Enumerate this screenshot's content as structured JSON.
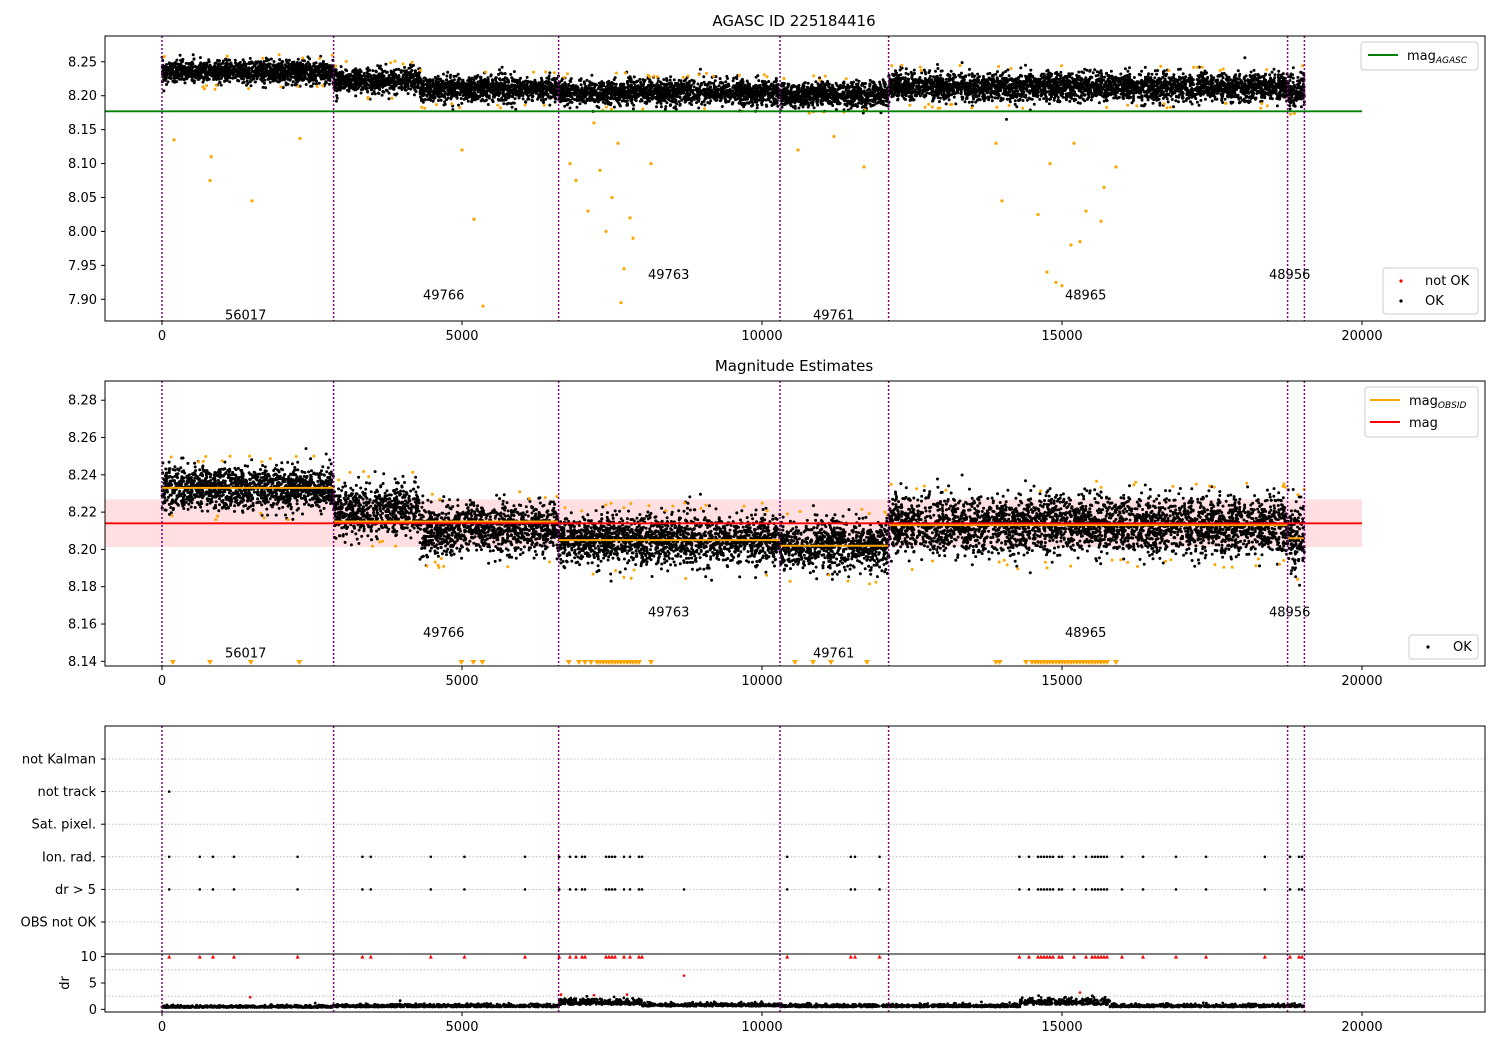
{
  "colors": {
    "points_ok": "#000000",
    "points_flagged": "#ffa500",
    "not_ok": "#ff0000",
    "obs_line": "#800080",
    "mag_agasc_line": "#008000",
    "mag_obsid_line": "#ffa500",
    "mag_line": "#ff0000",
    "mag_band": "#ffd7da",
    "grid": "#b0b0b0"
  },
  "chart_data": [
    {
      "type": "scatter",
      "title": "AGASC ID 225184416",
      "xlabel": "",
      "ylabel": "",
      "xlim": [
        -950,
        22050
      ],
      "ylim": [
        7.868,
        8.288
      ],
      "xticks": [
        0,
        5000,
        10000,
        15000,
        20000
      ],
      "yticks": [
        7.9,
        7.95,
        8.0,
        8.05,
        8.1,
        8.15,
        8.2,
        8.25
      ],
      "ytick_labels": [
        "7.90",
        "7.95",
        "8.00",
        "8.05",
        "8.10",
        "8.15",
        "8.20",
        "8.25"
      ],
      "legend": {
        "placement": "top-right",
        "entries": [
          {
            "label": "mag",
            "sub": "AGASC",
            "color": "#008000"
          }
        ]
      },
      "legend2": {
        "placement": "bottom-right",
        "entries": [
          {
            "label": "not OK",
            "color": "#ff0000"
          },
          {
            "label": "OK",
            "color": "#000000"
          }
        ]
      },
      "hlines": [
        {
          "y": 8.177,
          "x0": -950,
          "x1": 20000,
          "color": "#008000"
        }
      ],
      "obs_boundaries": [
        0,
        2860,
        6610,
        10300,
        12110,
        18760,
        19040
      ],
      "segments": [
        {
          "x0": 0,
          "x1": 2860,
          "mean": 8.235,
          "spread": 0.008
        },
        {
          "x0": 2860,
          "x1": 4300,
          "mean": 8.222,
          "spread": 0.009
        },
        {
          "x0": 4300,
          "x1": 6610,
          "mean": 8.21,
          "spread": 0.009
        },
        {
          "x0": 6610,
          "x1": 10300,
          "mean": 8.205,
          "spread": 0.009
        },
        {
          "x0": 10300,
          "x1": 12110,
          "mean": 8.201,
          "spread": 0.009
        },
        {
          "x0": 12110,
          "x1": 18760,
          "mean": 8.213,
          "spread": 0.01
        },
        {
          "x0": 18760,
          "x1": 19040,
          "mean": 8.207,
          "spread": 0.012
        }
      ],
      "outliers": [
        {
          "x": 200,
          "y": 8.135
        },
        {
          "x": 820,
          "y": 8.11
        },
        {
          "x": 800,
          "y": 8.075
        },
        {
          "x": 1500,
          "y": 8.045
        },
        {
          "x": 2300,
          "y": 8.137
        },
        {
          "x": 5000,
          "y": 8.12
        },
        {
          "x": 5200,
          "y": 8.018
        },
        {
          "x": 5350,
          "y": 7.89
        },
        {
          "x": 6900,
          "y": 8.075
        },
        {
          "x": 7100,
          "y": 8.03
        },
        {
          "x": 7300,
          "y": 8.09
        },
        {
          "x": 7400,
          "y": 8.0
        },
        {
          "x": 7500,
          "y": 8.05
        },
        {
          "x": 7600,
          "y": 8.13
        },
        {
          "x": 7650,
          "y": 7.895
        },
        {
          "x": 7700,
          "y": 7.945
        },
        {
          "x": 7800,
          "y": 8.02
        },
        {
          "x": 7850,
          "y": 7.99
        },
        {
          "x": 7200,
          "y": 8.16
        },
        {
          "x": 6800,
          "y": 8.1
        },
        {
          "x": 8150,
          "y": 8.1
        },
        {
          "x": 10600,
          "y": 8.12
        },
        {
          "x": 11200,
          "y": 8.14
        },
        {
          "x": 11700,
          "y": 8.095
        },
        {
          "x": 13900,
          "y": 8.13
        },
        {
          "x": 14000,
          "y": 8.045
        },
        {
          "x": 14600,
          "y": 8.025
        },
        {
          "x": 14750,
          "y": 7.94
        },
        {
          "x": 14900,
          "y": 7.925
        },
        {
          "x": 15000,
          "y": 7.92
        },
        {
          "x": 15150,
          "y": 7.98
        },
        {
          "x": 15300,
          "y": 7.985
        },
        {
          "x": 15400,
          "y": 8.03
        },
        {
          "x": 15650,
          "y": 8.015
        },
        {
          "x": 15700,
          "y": 8.065
        },
        {
          "x": 15900,
          "y": 8.095
        },
        {
          "x": 14800,
          "y": 8.1
        },
        {
          "x": 15200,
          "y": 8.13
        }
      ],
      "annotations": [
        {
          "text": "56017",
          "x": 1050,
          "y": 7.87
        },
        {
          "text": "49766",
          "x": 4350,
          "y": 7.9
        },
        {
          "text": "49763",
          "x": 8100,
          "y": 7.93
        },
        {
          "text": "49761",
          "x": 10850,
          "y": 7.87
        },
        {
          "text": "48965",
          "x": 15050,
          "y": 7.9
        },
        {
          "text": "48956",
          "x": 18450,
          "y": 7.93
        }
      ]
    },
    {
      "type": "scatter",
      "title": "Magnitude Estimates",
      "xlabel": "",
      "ylabel": "",
      "xlim": [
        -950,
        22050
      ],
      "ylim": [
        8.1375,
        8.2903
      ],
      "xticks": [
        0,
        5000,
        10000,
        15000,
        20000
      ],
      "yticks": [
        8.14,
        8.16,
        8.18,
        8.2,
        8.22,
        8.24,
        8.26,
        8.28
      ],
      "ytick_labels": [
        "8.14",
        "8.16",
        "8.18",
        "8.20",
        "8.22",
        "8.24",
        "8.26",
        "8.28"
      ],
      "legend": {
        "placement": "top-right",
        "entries": [
          {
            "label": "mag",
            "sub": "OBSID",
            "color": "#ffa500"
          },
          {
            "label": "mag",
            "sub": "",
            "color": "#ff0000"
          }
        ]
      },
      "legend2": {
        "placement": "bottom-right",
        "entries": [
          {
            "label": "OK",
            "color": "#000000"
          }
        ]
      },
      "mag": 8.214,
      "mag_band": [
        8.2013,
        8.2268
      ],
      "mag_obsid": [
        {
          "x0": 0,
          "x1": 2860,
          "y": 8.233
        },
        {
          "x0": 2860,
          "x1": 6610,
          "y": 8.215
        },
        {
          "x0": 6610,
          "x1": 10300,
          "y": 8.205
        },
        {
          "x0": 10300,
          "x1": 12110,
          "y": 8.202
        },
        {
          "x0": 12110,
          "x1": 18760,
          "y": 8.213
        },
        {
          "x0": 18760,
          "x1": 19040,
          "y": 8.206
        }
      ],
      "obs_boundaries": [
        0,
        2860,
        6610,
        10300,
        12110,
        18760,
        19040
      ],
      "segments": [
        {
          "x0": 0,
          "x1": 2860,
          "mean": 8.233,
          "spread": 0.0055
        },
        {
          "x0": 2860,
          "x1": 4300,
          "mean": 8.221,
          "spread": 0.0065
        },
        {
          "x0": 4300,
          "x1": 6610,
          "mean": 8.211,
          "spread": 0.0065
        },
        {
          "x0": 6610,
          "x1": 10300,
          "mean": 8.205,
          "spread": 0.0065
        },
        {
          "x0": 10300,
          "x1": 12110,
          "mean": 8.202,
          "spread": 0.0065
        },
        {
          "x0": 12110,
          "x1": 18760,
          "mean": 8.213,
          "spread": 0.0075
        },
        {
          "x0": 18760,
          "x1": 19040,
          "mean": 8.207,
          "spread": 0.009
        }
      ],
      "lower_limit_markers": [
        180,
        800,
        1480,
        2290,
        4990,
        5190,
        5340,
        6780,
        6950,
        7050,
        7150,
        7250,
        7300,
        7350,
        7400,
        7450,
        7500,
        7550,
        7600,
        7650,
        7700,
        7750,
        7800,
        7850,
        7900,
        7950,
        8150,
        10550,
        10850,
        11150,
        11750,
        13900,
        13960,
        14400,
        14500,
        14550,
        14600,
        14650,
        14700,
        14750,
        14800,
        14850,
        14900,
        14950,
        15000,
        15050,
        15100,
        15150,
        15200,
        15250,
        15300,
        15350,
        15400,
        15450,
        15500,
        15550,
        15600,
        15650,
        15700,
        15750,
        15900
      ],
      "annotations": [
        {
          "text": "56017",
          "x": 1050,
          "y": 8.142
        },
        {
          "text": "49766",
          "x": 4350,
          "y": 8.153
        },
        {
          "text": "49763",
          "x": 8100,
          "y": 8.164
        },
        {
          "text": "49761",
          "x": 10850,
          "y": 8.142
        },
        {
          "text": "48965",
          "x": 15050,
          "y": 8.153
        },
        {
          "text": "48956",
          "x": 18450,
          "y": 8.164
        }
      ]
    },
    {
      "type": "scatter",
      "title": "",
      "xlabel": "",
      "ylabel": "",
      "xlim": [
        -950,
        22050
      ],
      "flag_rows": [
        "not Kalman",
        "not track",
        "Sat. pixel.",
        "Ion. rad.",
        "dr > 5",
        "OBS not OK"
      ],
      "obs_boundaries": [
        0,
        2860,
        6610,
        10300,
        12110,
        18760,
        19040
      ],
      "flags": {
        "not track": [
          120
        ],
        "Ion. rad.": [
          120,
          630,
          850,
          1200,
          2260,
          3340,
          3480,
          4480,
          5040,
          6050,
          6620,
          6800,
          6900,
          7000,
          7050,
          7400,
          7450,
          7500,
          7550,
          7700,
          7800,
          7950,
          8000,
          10420,
          11480,
          11550,
          11960,
          14290,
          14450,
          14600,
          14650,
          14700,
          14750,
          14800,
          14850,
          14950,
          15000,
          15200,
          15400,
          15500,
          15550,
          15600,
          15650,
          15700,
          15750,
          16000,
          16350,
          16900,
          17400,
          18380,
          18800,
          18950,
          19000
        ],
        "dr > 5": [
          120,
          630,
          850,
          1200,
          2260,
          3340,
          3480,
          4480,
          5040,
          6050,
          6620,
          6800,
          6900,
          7000,
          7050,
          7400,
          7450,
          7500,
          7550,
          7700,
          7800,
          7950,
          8000,
          8700,
          10420,
          11480,
          11550,
          11960,
          14290,
          14450,
          14600,
          14650,
          14700,
          14750,
          14800,
          14850,
          14950,
          15000,
          15200,
          15400,
          15500,
          15550,
          15600,
          15650,
          15700,
          15750,
          16000,
          16350,
          16900,
          17400,
          18380,
          18800,
          18950,
          19000
        ]
      }
    },
    {
      "type": "scatter",
      "title": "",
      "xlabel": "",
      "ylabel": "dr",
      "xlim": [
        -950,
        22050
      ],
      "ylim": [
        -0.5,
        10.5
      ],
      "xticks": [
        0,
        5000,
        10000,
        15000,
        20000
      ],
      "yticks": [
        0,
        5,
        10
      ],
      "ytick_labels": [
        "0",
        "5",
        "10"
      ],
      "obs_boundaries": [
        0,
        2860,
        6610,
        10300,
        12110,
        18760,
        19040
      ],
      "clipped_x": [
        120,
        630,
        850,
        1200,
        2260,
        3340,
        3480,
        4480,
        5040,
        6050,
        6620,
        6800,
        6900,
        7000,
        7050,
        7400,
        7450,
        7500,
        7550,
        7700,
        7800,
        7950,
        8000,
        10420,
        11480,
        11550,
        11960,
        14290,
        14450,
        14600,
        14650,
        14700,
        14750,
        14800,
        14850,
        14950,
        15000,
        15200,
        15400,
        15500,
        15550,
        15600,
        15650,
        15700,
        15750,
        16000,
        16350,
        16900,
        17400,
        18380,
        18800,
        18950,
        19000
      ],
      "outliers": [
        {
          "x": 1470,
          "y": 2.3
        },
        {
          "x": 6650,
          "y": 2.8
        },
        {
          "x": 7200,
          "y": 2.7
        },
        {
          "x": 7750,
          "y": 2.8
        },
        {
          "x": 8700,
          "y": 6.4
        },
        {
          "x": 15300,
          "y": 3.2
        }
      ],
      "baseline": [
        {
          "x0": 0,
          "x1": 2860,
          "mean": 0.35,
          "spread": 0.2
        },
        {
          "x0": 2860,
          "x1": 6610,
          "mean": 0.45,
          "spread": 0.25
        },
        {
          "x0": 6610,
          "x1": 8000,
          "mean": 0.9,
          "spread": 0.55
        },
        {
          "x0": 8000,
          "x1": 10300,
          "mean": 0.6,
          "spread": 0.3
        },
        {
          "x0": 10300,
          "x1": 14300,
          "mean": 0.45,
          "spread": 0.25
        },
        {
          "x0": 14300,
          "x1": 15800,
          "mean": 0.9,
          "spread": 0.6
        },
        {
          "x0": 15800,
          "x1": 19040,
          "mean": 0.45,
          "spread": 0.25
        }
      ]
    }
  ]
}
